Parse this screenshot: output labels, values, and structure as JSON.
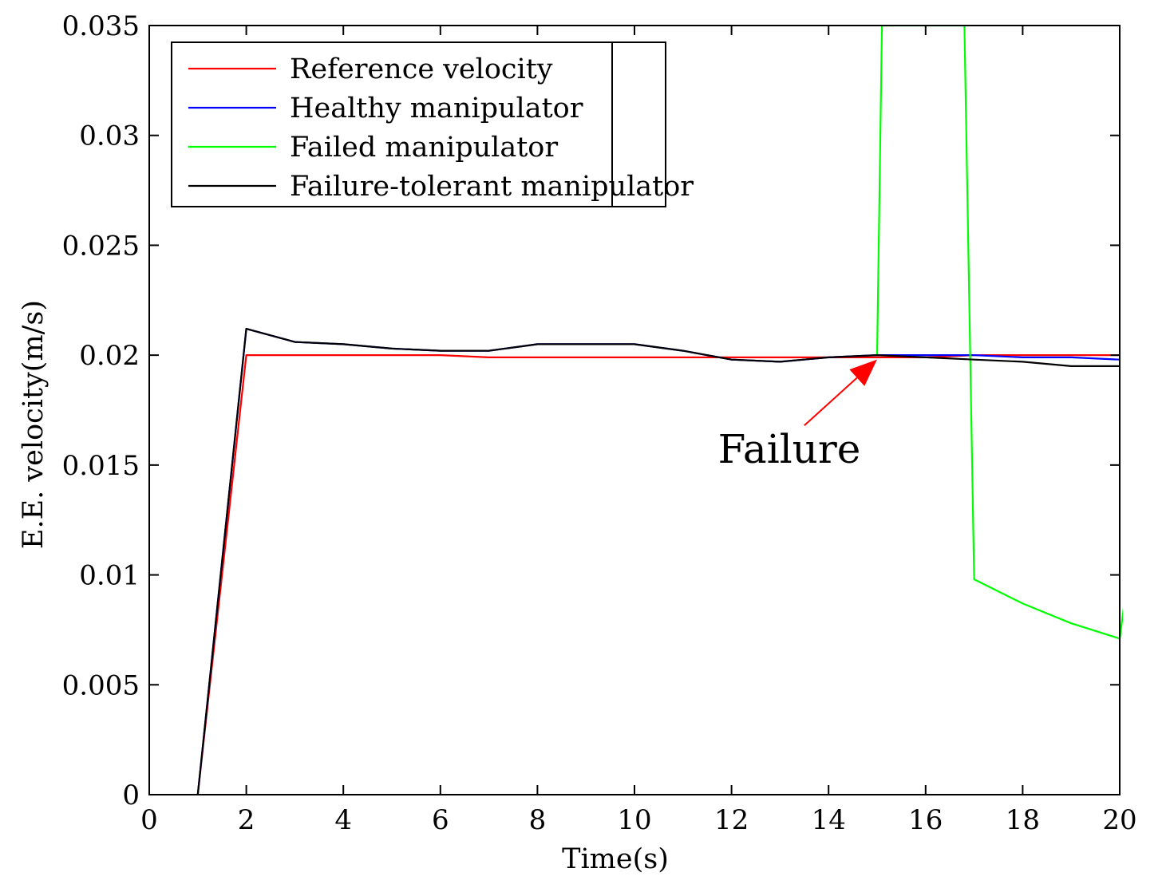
{
  "chart_data": {
    "type": "line",
    "xlabel": "Time(s)",
    "ylabel": "E.E. velocity(m/s)",
    "xlim": [
      0,
      20
    ],
    "ylim": [
      0,
      0.035
    ],
    "xticks": [
      0,
      2,
      4,
      6,
      8,
      10,
      12,
      14,
      16,
      18,
      20
    ],
    "xtick_labels": [
      "0",
      "2",
      "4",
      "6",
      "8",
      "10",
      "12",
      "14",
      "16",
      "18",
      "20"
    ],
    "yticks": [
      0,
      0.005,
      0.01,
      0.015,
      0.02,
      0.025,
      0.03,
      0.035
    ],
    "ytick_labels": [
      "0",
      "0.005",
      "0.01",
      "0.015",
      "0.02",
      "0.025",
      "0.03",
      "0.035"
    ],
    "grid": false,
    "legend_position": "top-left",
    "series": [
      {
        "name": "Reference velocity",
        "color": "#ff0000",
        "x": [
          1,
          2,
          3,
          4,
          5,
          6,
          7,
          8,
          9,
          10,
          11,
          12,
          13,
          14,
          15,
          16,
          17,
          18,
          19,
          20
        ],
        "y": [
          0,
          0.02,
          0.02,
          0.02,
          0.02,
          0.02,
          0.0199,
          0.0199,
          0.0199,
          0.0199,
          0.0199,
          0.0199,
          0.0199,
          0.0199,
          0.0199,
          0.0199,
          0.02,
          0.02,
          0.02,
          0.02
        ]
      },
      {
        "name": "Healthy manipulator",
        "color": "#0000ff",
        "x": [
          1,
          2,
          3,
          4,
          5,
          6,
          7,
          8,
          9,
          10,
          11,
          12,
          13,
          14,
          15,
          16,
          17,
          18,
          19,
          20
        ],
        "y": [
          0,
          0.0212,
          0.0206,
          0.0205,
          0.0203,
          0.0202,
          0.0202,
          0.0205,
          0.0205,
          0.0205,
          0.0202,
          0.0198,
          0.0197,
          0.0199,
          0.02,
          0.02,
          0.02,
          0.0199,
          0.0199,
          0.0198
        ]
      },
      {
        "name": "Failed manipulator",
        "color": "#00ff00",
        "x": [
          15,
          15.1,
          16.8,
          17,
          18,
          19,
          20,
          20.1
        ],
        "y": [
          0.02,
          0.035,
          0.035,
          0.0098,
          0.0087,
          0.0078,
          0.0071,
          0.0088
        ]
      },
      {
        "name": "Failure-tolerant manipulator",
        "color": "#000000",
        "x": [
          1,
          2,
          3,
          4,
          5,
          6,
          7,
          8,
          9,
          10,
          11,
          12,
          13,
          14,
          15,
          16,
          17,
          18,
          19,
          20
        ],
        "y": [
          0,
          0.0212,
          0.0206,
          0.0205,
          0.0203,
          0.0202,
          0.0202,
          0.0205,
          0.0205,
          0.0205,
          0.0202,
          0.0198,
          0.0197,
          0.0199,
          0.02,
          0.0199,
          0.0198,
          0.0197,
          0.0195,
          0.0195
        ]
      }
    ],
    "annotation": {
      "text": "Failure",
      "color": "#ff0000",
      "arrow_to": [
        15,
        0.0198
      ],
      "arrow_from": [
        13.5,
        0.0168
      ]
    }
  }
}
